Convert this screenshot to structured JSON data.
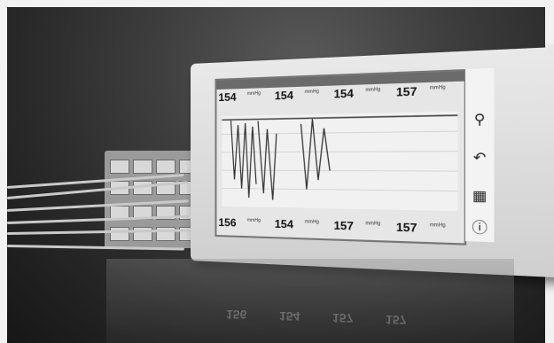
{
  "top_row": [
    {
      "value": "154",
      "unit": "mmHg"
    },
    {
      "value": "154",
      "unit": "mmHg"
    },
    {
      "value": "154",
      "unit": "mmHg"
    },
    {
      "value": "157",
      "unit": "mmHg"
    }
  ],
  "bottom_row": [
    {
      "value": "156",
      "unit": "mmHg"
    },
    {
      "value": "154",
      "unit": "mmHg"
    },
    {
      "value": "157",
      "unit": "mmHg"
    },
    {
      "value": "157",
      "unit": "mmHg"
    }
  ],
  "side_buttons": [
    "magnifier-icon",
    "return-arrow-icon",
    "folder-icon",
    "info-icon"
  ],
  "reflection": [
    "156",
    "154",
    "157",
    "157"
  ]
}
